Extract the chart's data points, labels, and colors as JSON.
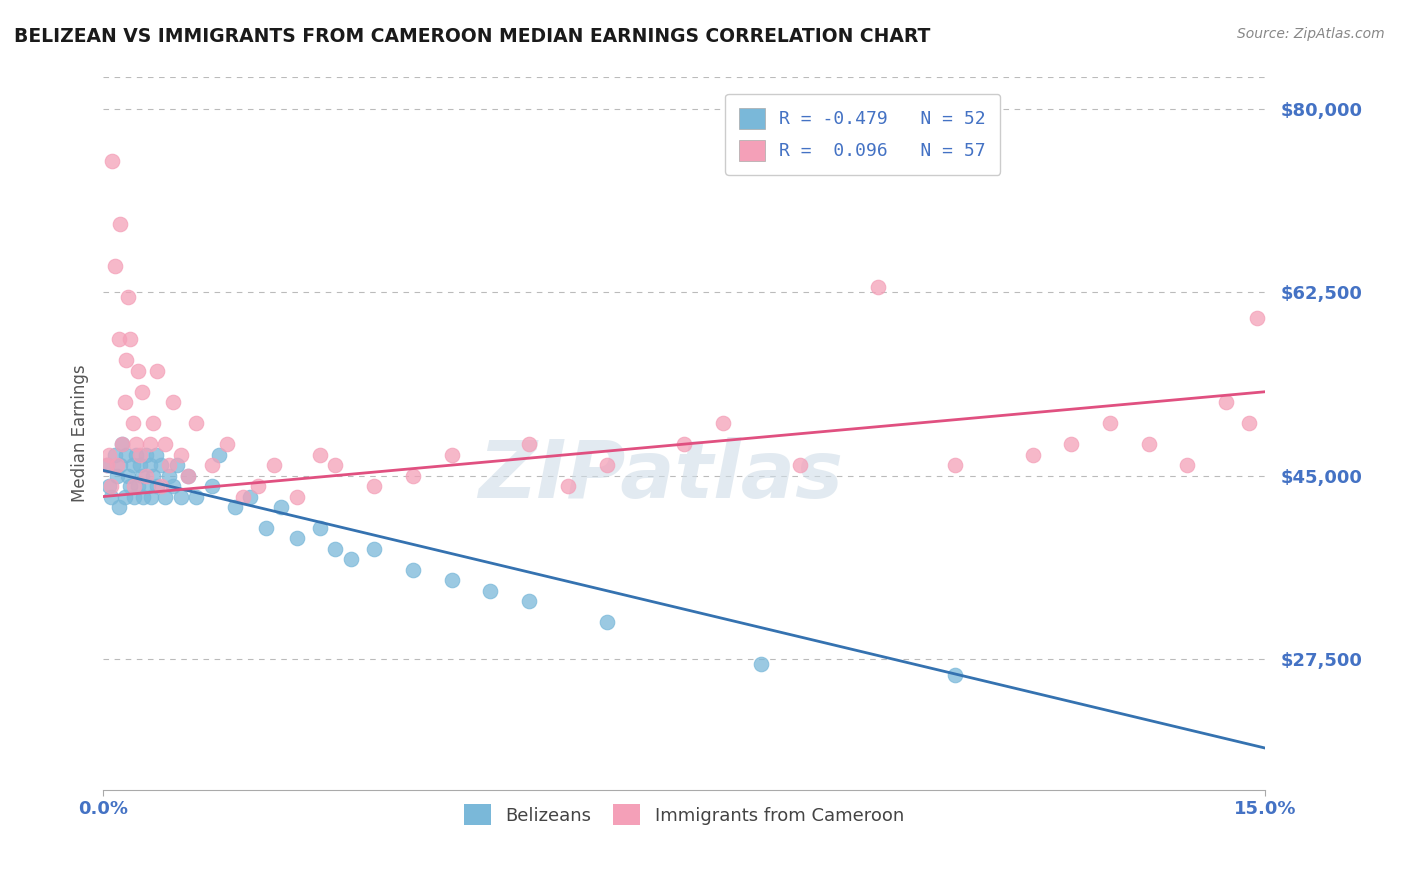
{
  "title": "BELIZEAN VS IMMIGRANTS FROM CAMEROON MEDIAN EARNINGS CORRELATION CHART",
  "source": "Source: ZipAtlas.com",
  "ylabel": "Median Earnings",
  "xmin": 0.0,
  "xmax": 15.0,
  "ymin": 15000,
  "ymax": 83000,
  "blue_color": "#7ab8d9",
  "pink_color": "#f4a0b8",
  "line_blue": "#3572b0",
  "line_pink": "#e05080",
  "R_blue": -0.479,
  "N_blue": 52,
  "R_pink": 0.096,
  "N_pink": 57,
  "legend_label_blue": "Belizeans",
  "legend_label_pink": "Immigrants from Cameroon",
  "watermark": "ZIPatlas",
  "title_color": "#1a1a1a",
  "axis_label_color": "#4472c4",
  "tick_label_color": "#4472c4",
  "background_color": "#ffffff",
  "ytick_positions": [
    27500,
    45000,
    62500,
    80000
  ],
  "ytick_labels": [
    "$27,500",
    "$45,000",
    "$62,500",
    "$80,000"
  ],
  "blue_scatter_x": [
    0.05,
    0.08,
    0.1,
    0.15,
    0.18,
    0.2,
    0.22,
    0.25,
    0.28,
    0.3,
    0.32,
    0.35,
    0.38,
    0.4,
    0.42,
    0.45,
    0.48,
    0.5,
    0.52,
    0.55,
    0.58,
    0.6,
    0.62,
    0.65,
    0.68,
    0.7,
    0.75,
    0.8,
    0.85,
    0.9,
    0.95,
    1.0,
    1.1,
    1.2,
    1.4,
    1.5,
    1.7,
    1.9,
    2.1,
    2.3,
    2.5,
    2.8,
    3.0,
    3.2,
    3.5,
    4.0,
    4.5,
    5.0,
    5.5,
    6.5,
    8.5,
    11.0
  ],
  "blue_scatter_y": [
    46000,
    44000,
    43000,
    47000,
    45000,
    42000,
    46000,
    48000,
    43000,
    47000,
    45000,
    44000,
    46000,
    43000,
    47000,
    44000,
    46000,
    45000,
    43000,
    47000,
    44000,
    46000,
    43000,
    45000,
    47000,
    44000,
    46000,
    43000,
    45000,
    44000,
    46000,
    43000,
    45000,
    43000,
    44000,
    47000,
    42000,
    43000,
    40000,
    42000,
    39000,
    40000,
    38000,
    37000,
    38000,
    36000,
    35000,
    34000,
    33000,
    31000,
    27000,
    26000
  ],
  "pink_scatter_x": [
    0.05,
    0.08,
    0.1,
    0.12,
    0.15,
    0.18,
    0.2,
    0.22,
    0.25,
    0.28,
    0.3,
    0.32,
    0.35,
    0.38,
    0.4,
    0.42,
    0.45,
    0.48,
    0.5,
    0.55,
    0.6,
    0.65,
    0.7,
    0.75,
    0.8,
    0.85,
    0.9,
    1.0,
    1.1,
    1.2,
    1.4,
    1.6,
    1.8,
    2.0,
    2.2,
    2.5,
    2.8,
    3.0,
    3.5,
    4.0,
    4.5,
    5.5,
    6.0,
    6.5,
    7.5,
    8.0,
    9.0,
    10.0,
    11.0,
    12.0,
    12.5,
    13.0,
    13.5,
    14.0,
    14.5,
    14.8,
    14.9
  ],
  "pink_scatter_y": [
    46000,
    47000,
    44000,
    75000,
    65000,
    46000,
    58000,
    69000,
    48000,
    52000,
    56000,
    62000,
    58000,
    50000,
    44000,
    48000,
    55000,
    47000,
    53000,
    45000,
    48000,
    50000,
    55000,
    44000,
    48000,
    46000,
    52000,
    47000,
    45000,
    50000,
    46000,
    48000,
    43000,
    44000,
    46000,
    43000,
    47000,
    46000,
    44000,
    45000,
    47000,
    48000,
    44000,
    46000,
    48000,
    50000,
    46000,
    63000,
    46000,
    47000,
    48000,
    50000,
    48000,
    46000,
    52000,
    50000,
    60000
  ]
}
